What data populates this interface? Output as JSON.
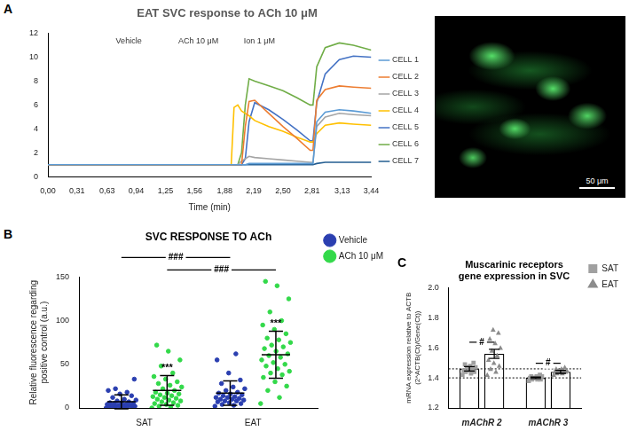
{
  "micrograph": {
    "scale_bar": "50 μm"
  },
  "chart_data": [
    {
      "type": "line",
      "panel": "A",
      "title": "EAT SVC response to ACh 10 μM",
      "x_label": "Time (min)",
      "x": [
        0,
        0.5,
        1.0,
        1.5,
        1.95,
        1.98,
        2.02,
        2.06,
        2.1,
        2.14,
        2.2,
        2.35,
        2.5,
        2.65,
        2.79,
        2.82,
        2.86,
        2.95,
        3.1,
        3.25,
        3.44
      ],
      "xlim": [
        0,
        3.44
      ],
      "xticks": [
        {
          "value": 0,
          "label": "0,00"
        },
        {
          "value": 0.31,
          "label": "0,31"
        },
        {
          "value": 0.63,
          "label": "0,63"
        },
        {
          "value": 0.94,
          "label": "0,94"
        },
        {
          "value": 1.25,
          "label": "1,25"
        },
        {
          "value": 1.56,
          "label": "1,56"
        },
        {
          "value": 1.88,
          "label": "1,88"
        },
        {
          "value": 2.19,
          "label": "2,19"
        },
        {
          "value": 2.5,
          "label": "2,50"
        },
        {
          "value": 2.81,
          "label": "2,81"
        },
        {
          "value": 3.13,
          "label": "3,13"
        },
        {
          "value": 3.44,
          "label": "3,44"
        }
      ],
      "ylim": [
        0,
        12
      ],
      "yticks": [
        0,
        2,
        4,
        6,
        8,
        10,
        12
      ],
      "grid": false,
      "legend": "right",
      "annotations": [
        {
          "text": "Vehicle",
          "x": 0.86
        },
        {
          "text": "ACh 10 μM",
          "x": 1.6
        },
        {
          "text": "Ion 1 μM",
          "x": 2.25
        }
      ],
      "series": [
        {
          "name": "CELL 1",
          "color": "#5b9bd5",
          "values": [
            1,
            1,
            1,
            1,
            1,
            1,
            1,
            1,
            1,
            1.1,
            1.1,
            1.1,
            1.1,
            1.1,
            1.1,
            1.1,
            4.6,
            5.4,
            5.6,
            5.5,
            5.3
          ]
        },
        {
          "name": "CELL 2",
          "color": "#ed7d31",
          "values": [
            1,
            1,
            1,
            1,
            1,
            1,
            1,
            1,
            4.2,
            6.3,
            6.4,
            5.3,
            4.2,
            3.2,
            2.2,
            2.2,
            6.4,
            7.3,
            7.6,
            7.5,
            7.4
          ]
        },
        {
          "name": "CELL 3",
          "color": "#a5a5a5",
          "values": [
            1,
            1,
            1,
            1,
            1,
            1,
            1,
            1.3,
            1.5,
            1.7,
            1.6,
            1.5,
            1.4,
            1.3,
            1.2,
            1.2,
            4.2,
            5,
            5.3,
            5.2,
            5.1
          ]
        },
        {
          "name": "CELL 4",
          "color": "#ffc000",
          "values": [
            1,
            1,
            1,
            1,
            1,
            5.8,
            6,
            5.5,
            5.3,
            5.1,
            4.7,
            4.2,
            3.8,
            3.3,
            2.9,
            2.9,
            3.6,
            4.3,
            4.5,
            4.4,
            4.3
          ]
        },
        {
          "name": "CELL 5",
          "color": "#4472c4",
          "values": [
            1,
            1,
            1,
            1,
            1,
            1,
            1,
            1,
            1.5,
            4.6,
            6.2,
            5.6,
            4.8,
            3.9,
            3,
            3,
            6.2,
            8.6,
            9.8,
            10.1,
            10
          ]
        },
        {
          "name": "CELL 6",
          "color": "#70ad47",
          "values": [
            1,
            1,
            1,
            1,
            1,
            1,
            1,
            2,
            6,
            8.2,
            8,
            7.6,
            7.2,
            6.6,
            6,
            6,
            9.2,
            10.8,
            11.2,
            11,
            10.6
          ]
        },
        {
          "name": "CELL 7",
          "color": "#255e91",
          "values": [
            1,
            1,
            1,
            1,
            1,
            1,
            1,
            1,
            1,
            1,
            1,
            1,
            1,
            1,
            1,
            1,
            1.1,
            1.2,
            1.2,
            1.2,
            1.2
          ]
        }
      ]
    },
    {
      "type": "scatter",
      "panel": "B",
      "title": "SVC RESPONSE TO ACh",
      "y_label": [
        "Relative fluorescence regarding",
        "positive control (a.u.)"
      ],
      "categories": [
        "SAT",
        "EAT"
      ],
      "ylim": [
        0,
        150
      ],
      "yticks": [
        0,
        50,
        100,
        150
      ],
      "grid": false,
      "legend": "right",
      "series": [
        {
          "name": "Vehicle",
          "color": "#2b3fb0",
          "marker": "circle",
          "values": [
            [
              0,
              0,
              0,
              1,
              1,
              1,
              2,
              2,
              2,
              3,
              3,
              3,
              3,
              4,
              4,
              5,
              5,
              6,
              6,
              7,
              8,
              9,
              10,
              12,
              14,
              16,
              20,
              18,
              22,
              33
            ],
            [
              2,
              3,
              4,
              5,
              6,
              7,
              8,
              8,
              9,
              10,
              10,
              11,
              12,
              12,
              13,
              14,
              15,
              16,
              17,
              18,
              20,
              22,
              24,
              28,
              32,
              40,
              55,
              62
            ]
          ],
          "mean": [
            7,
            17
          ],
          "sd": [
            8,
            14
          ]
        },
        {
          "name": "ACh 10 μM",
          "color": "#33d94a",
          "marker": "circle",
          "values": [
            [
              0,
              1,
              2,
              3,
              4,
              5,
              6,
              7,
              8,
              9,
              10,
              11,
              12,
              13,
              14,
              15,
              16,
              17,
              18,
              20,
              22,
              24,
              26,
              28,
              30,
              33,
              36,
              40,
              48,
              55,
              65,
              72
            ],
            [
              5,
              12,
              20,
              25,
              30,
              35,
              38,
              40,
              42,
              45,
              48,
              50,
              52,
              55,
              58,
              60,
              62,
              65,
              68,
              70,
              72,
              75,
              78,
              80,
              85,
              90,
              95,
              100,
              110,
              125,
              140,
              145
            ]
          ],
          "mean": [
            20,
            61
          ],
          "sd": [
            17,
            27
          ]
        }
      ],
      "significance": [
        {
          "text": "***",
          "category": "SAT",
          "series": "ACh 10 μM"
        },
        {
          "text": "***",
          "category": "EAT",
          "series": "ACh 10 μM"
        }
      ],
      "comparisons": [
        {
          "text": "###",
          "series": "Vehicle",
          "categories": [
            "SAT",
            "EAT"
          ]
        },
        {
          "text": "###",
          "series": "ACh 10 μM",
          "categories": [
            "SAT",
            "EAT"
          ]
        }
      ]
    },
    {
      "type": "bar",
      "panel": "C",
      "title": [
        "Muscarinic receptors",
        "gene expression in SVC"
      ],
      "y_label": [
        "mRNA expression relative to ACTB",
        "(2^ACTB(Ct)/Gene(Ct))"
      ],
      "categories": [
        "mAChR 2",
        "mAChR 3"
      ],
      "ylim": [
        1.2,
        2
      ],
      "yticks": [
        1.2,
        1.4,
        1.6,
        1.8,
        {
          "value": 2,
          "label": "2.0"
        }
      ],
      "grid": false,
      "legend": "right",
      "reference_lines": [
        1.46,
        1.4
      ],
      "series": [
        {
          "name": "SAT",
          "color": "#a0a0a0",
          "marker": "square",
          "values": [
            1.46,
            1.4
          ],
          "errors": [
            0.015,
            0.005
          ],
          "points": [
            [
              1.42,
              1.43,
              1.44,
              1.44,
              1.45,
              1.45,
              1.46,
              1.47,
              1.47,
              1.48,
              1.49,
              1.5
            ],
            [
              1.38,
              1.39,
              1.39,
              1.39,
              1.4,
              1.4,
              1.4,
              1.4,
              1.41,
              1.41,
              1.41,
              1.42
            ]
          ]
        },
        {
          "name": "EAT",
          "color": "#8c8c8c",
          "marker": "triangle",
          "values": [
            1.56,
            1.44
          ],
          "errors": [
            0.03,
            0.01
          ],
          "points": [
            [
              1.42,
              1.44,
              1.46,
              1.48,
              1.5,
              1.52,
              1.55,
              1.58,
              1.6,
              1.63,
              1.66,
              1.7,
              1.72
            ],
            [
              1.42,
              1.43,
              1.43,
              1.44,
              1.44,
              1.44,
              1.45,
              1.45,
              1.45,
              1.46,
              1.46,
              1.47
            ]
          ]
        }
      ],
      "comparisons": [
        {
          "text": "#",
          "category": "mAChR 2"
        },
        {
          "text": "#",
          "category": "mAChR 3"
        }
      ]
    }
  ]
}
